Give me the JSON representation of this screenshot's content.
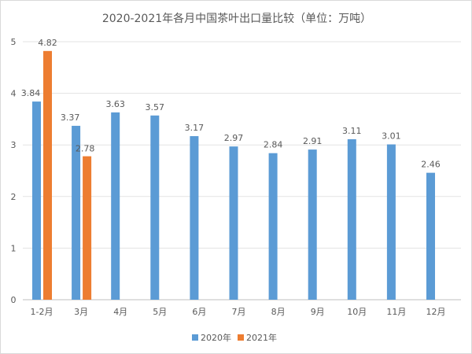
{
  "chart_data": {
    "type": "bar",
    "title": "2020-2021年各月中国茶叶出口量比较（单位：万吨）",
    "categories": [
      "1-2月",
      "3月",
      "4月",
      "5月",
      "6月",
      "7月",
      "8月",
      "9月",
      "10月",
      "11月",
      "12月"
    ],
    "series": [
      {
        "name": "2020年",
        "color": "#5b9bd5",
        "values": [
          3.84,
          3.37,
          3.63,
          3.57,
          3.17,
          2.97,
          2.84,
          2.91,
          3.11,
          3.01,
          2.46
        ]
      },
      {
        "name": "2021年",
        "color": "#ed7d31",
        "values": [
          4.82,
          2.78,
          null,
          null,
          null,
          null,
          null,
          null,
          null,
          null,
          null
        ]
      }
    ],
    "ylim": [
      0,
      5
    ],
    "yticks": [
      "0",
      "1",
      "2",
      "3",
      "4",
      "5"
    ],
    "grid": true,
    "legend": "bottom",
    "xlabel": "",
    "ylabel": ""
  }
}
